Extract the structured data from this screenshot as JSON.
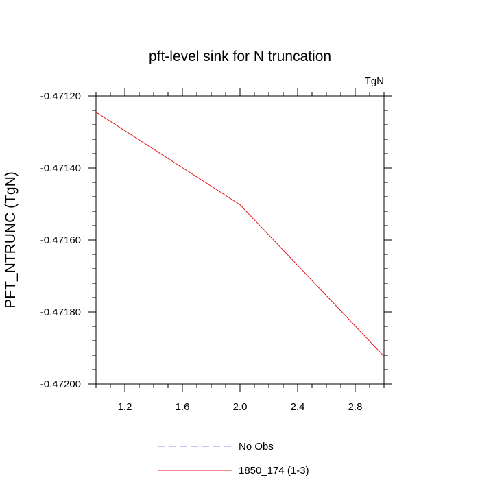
{
  "chart_data": {
    "type": "line",
    "title": "pft-level sink for N truncation",
    "units_label": "TgN",
    "xlabel": "",
    "ylabel": "PFT_NTRUNC  (TgN)",
    "xlim": [
      1.0,
      3.0
    ],
    "ylim": [
      -0.472,
      -0.4712
    ],
    "xticks": [
      1.2,
      1.6,
      2.0,
      2.4,
      2.8
    ],
    "xtick_labels": [
      "1.2",
      "1.6",
      "2.0",
      "2.4",
      "2.8"
    ],
    "yticks": [
      -0.4712,
      -0.4714,
      -0.4716,
      -0.4718,
      -0.472
    ],
    "ytick_labels": [
      "-0.47120",
      "-0.47140",
      "-0.47160",
      "-0.47180",
      "-0.47200"
    ],
    "grid": false,
    "legend_position": "bottom-center",
    "series": [
      {
        "name": "1850_174 (1-3)",
        "color": "#e8141c",
        "style": "solid",
        "x": [
          1.0,
          2.0,
          3.0
        ],
        "y": [
          -0.471245,
          -0.471502,
          -0.471923
        ]
      }
    ],
    "legend": [
      {
        "label": "No Obs",
        "color": "#8a8ae8",
        "style": "dashed"
      },
      {
        "label": "1850_174 (1-3)",
        "color": "#e8141c",
        "style": "solid"
      }
    ]
  }
}
